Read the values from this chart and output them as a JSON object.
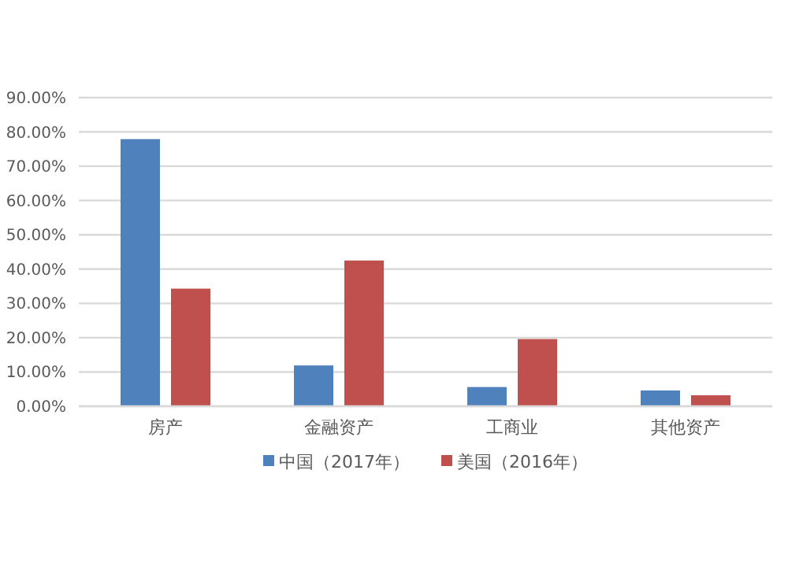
{
  "chart_data": {
    "type": "bar",
    "categories": [
      "房产",
      "金融资产",
      "工商业",
      "其他资产"
    ],
    "series": [
      {
        "name": "中国（2017年）",
        "color": "#4f81bd",
        "values": [
          77.9,
          11.9,
          5.6,
          4.6
        ]
      },
      {
        "name": "美国（2016年）",
        "color": "#c0504d",
        "values": [
          34.3,
          42.5,
          19.6,
          3.2
        ]
      }
    ],
    "ylim": [
      0,
      90
    ],
    "yticks": [
      {
        "value": 0,
        "label": "0.00%"
      },
      {
        "value": 10,
        "label": "10.00%"
      },
      {
        "value": 20,
        "label": "20.00%"
      },
      {
        "value": 30,
        "label": "30.00%"
      },
      {
        "value": 40,
        "label": "40.00%"
      },
      {
        "value": 50,
        "label": "50.00%"
      },
      {
        "value": 60,
        "label": "60.00%"
      },
      {
        "value": 70,
        "label": "70.00%"
      },
      {
        "value": 80,
        "label": "80.00%"
      },
      {
        "value": 90,
        "label": "90.00%"
      }
    ],
    "grid": "y",
    "legend": "bottom"
  }
}
